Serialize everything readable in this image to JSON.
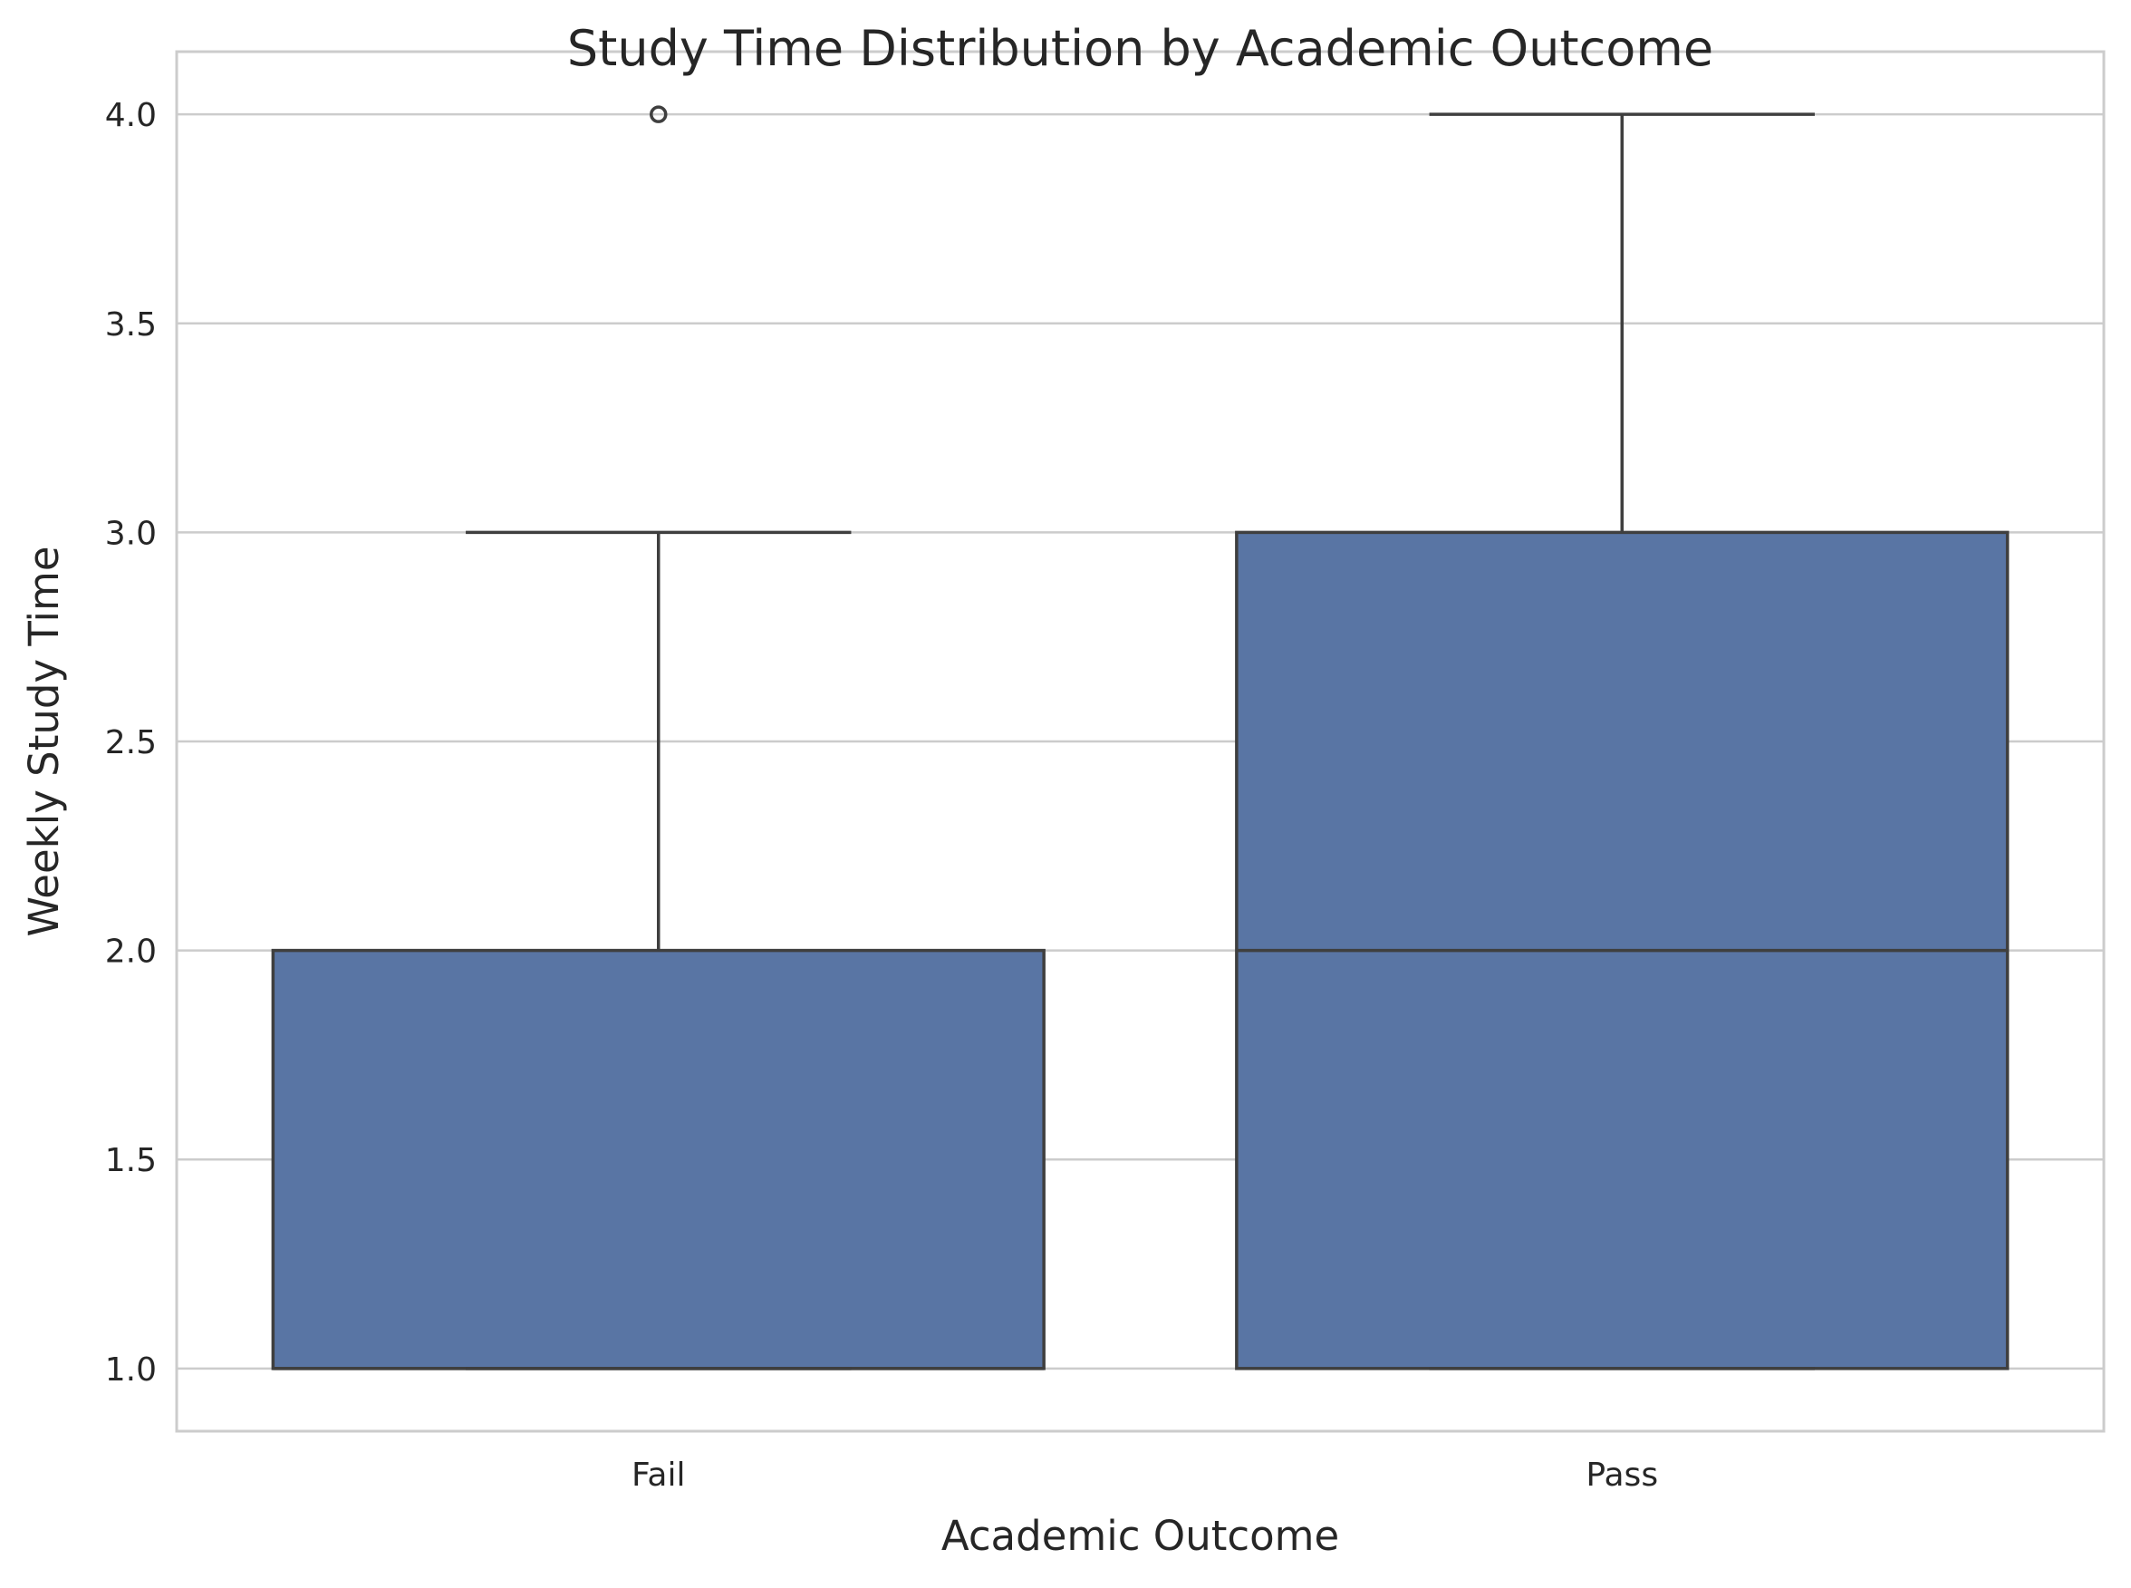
{
  "chart_data": {
    "type": "box",
    "title": "Study Time Distribution by Academic Outcome",
    "xlabel": "Academic Outcome",
    "ylabel": "Weekly Study Time",
    "ylim": [
      0.85,
      4.15
    ],
    "yticks": [
      1.0,
      1.5,
      2.0,
      2.5,
      3.0,
      3.5,
      4.0
    ],
    "ytick_labels": [
      "1.0",
      "1.5",
      "2.0",
      "2.5",
      "3.0",
      "3.5",
      "4.0"
    ],
    "grid": true,
    "categories": [
      "Fail",
      "Pass"
    ],
    "boxes": [
      {
        "category": "Fail",
        "whisker_low": 1.0,
        "q1": 1.0,
        "median": 1.0,
        "q3": 2.0,
        "whisker_high": 3.0,
        "outliers": [
          4.0
        ]
      },
      {
        "category": "Pass",
        "whisker_low": 1.0,
        "q1": 1.0,
        "median": 2.0,
        "q3": 3.0,
        "whisker_high": 4.0,
        "outliers": []
      }
    ],
    "colors": {
      "box_fill": "#5975a4",
      "box_edge": "#3f3f3f",
      "grid": "#cccccc",
      "frame": "#cccccc"
    }
  }
}
